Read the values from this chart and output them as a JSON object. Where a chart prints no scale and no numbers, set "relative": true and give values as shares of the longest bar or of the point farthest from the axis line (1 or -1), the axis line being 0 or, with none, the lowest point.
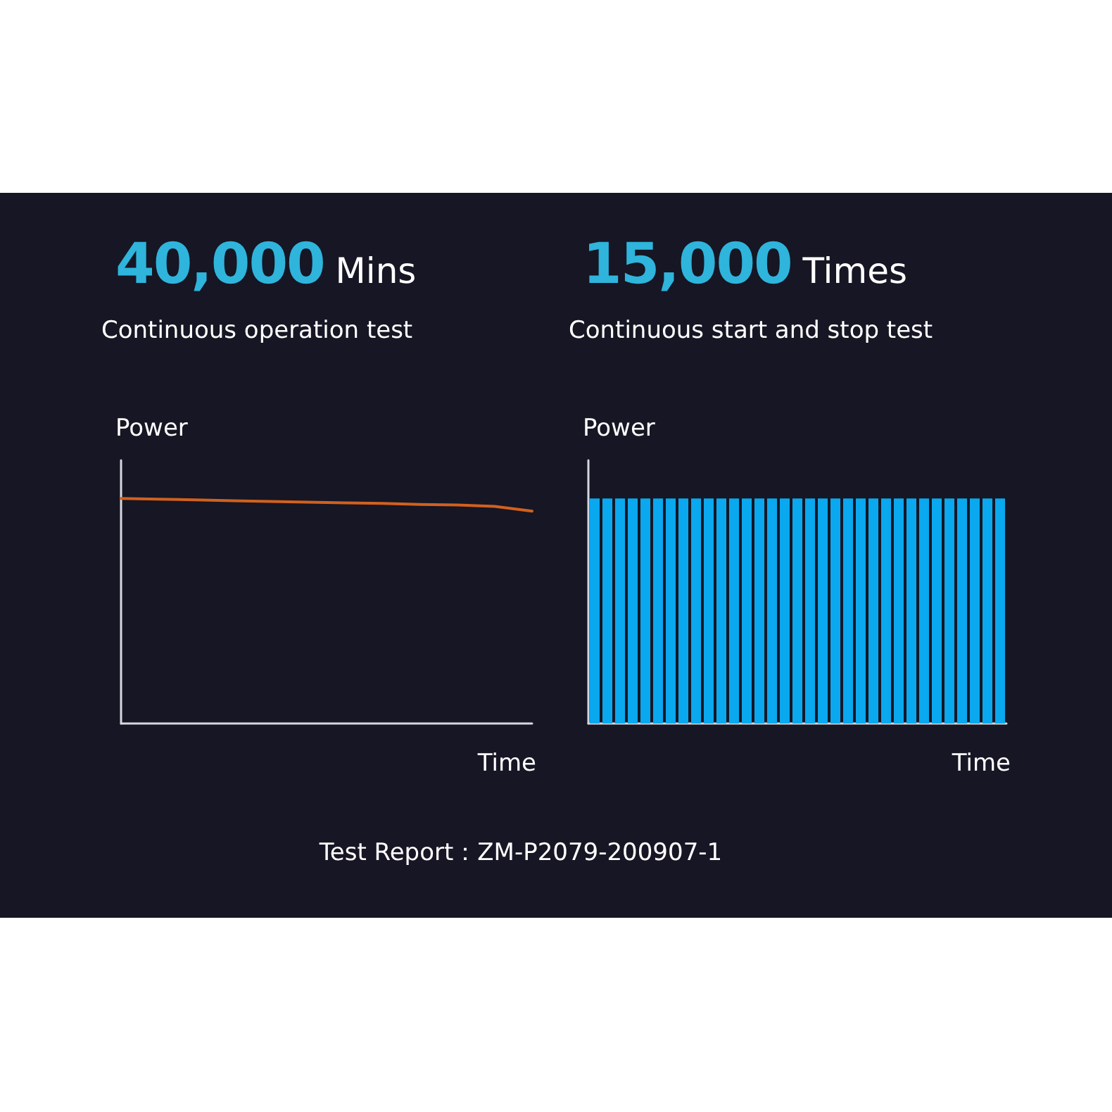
{
  "chart_data": [
    {
      "type": "line",
      "title": "40,000 Mins",
      "subtitle": "Continuous operation test",
      "xlabel": "Time",
      "ylabel": "Power",
      "relative": true,
      "marker": "none",
      "categories": [
        null,
        null,
        null,
        null,
        null,
        null,
        null,
        null,
        null,
        null,
        null,
        null
      ],
      "series": [
        {
          "color": "#d2611e",
          "values": [
            1,
            0.997,
            0.994,
            0.99,
            0.987,
            0.984,
            0.981,
            0.978,
            0.974,
            0.971,
            0.965,
            0.944
          ]
        }
      ],
      "annotations": [
        "Test Report：ZM-P2079-200907-1"
      ]
    },
    {
      "type": "bar",
      "title": "15,000 Times",
      "subtitle": "Continuous start and stop test",
      "xlabel": "Time",
      "ylabel": "Power",
      "relative": true,
      "categories": [
        null,
        null,
        null,
        null,
        null,
        null,
        null,
        null,
        null,
        null,
        null,
        null,
        null,
        null,
        null,
        null,
        null,
        null,
        null,
        null,
        null,
        null,
        null,
        null,
        null,
        null,
        null,
        null,
        null,
        null,
        null,
        null,
        null
      ],
      "series": [
        {
          "color": "#0aa8ee",
          "values": [
            1,
            1,
            1,
            1,
            1,
            1,
            1,
            1,
            1,
            1,
            1,
            1,
            1,
            1,
            1,
            1,
            1,
            1,
            1,
            1,
            1,
            1,
            1,
            1,
            1,
            1,
            1,
            1,
            1,
            1,
            1,
            1,
            1
          ]
        }
      ]
    }
  ]
}
